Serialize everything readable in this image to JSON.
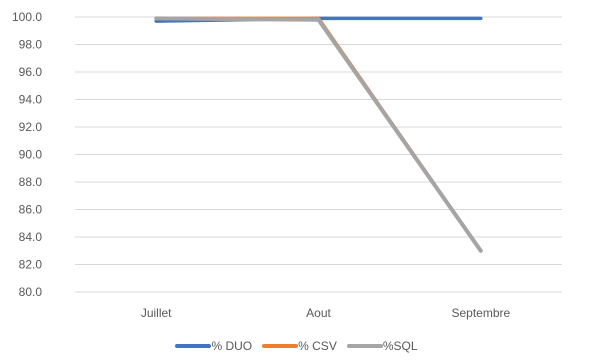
{
  "chart_data": {
    "type": "line",
    "categories": [
      "Juillet",
      "Aout",
      "Septembre"
    ],
    "series": [
      {
        "name": "% DUO",
        "color": "#4472C4",
        "values": [
          99.7,
          99.9,
          99.9
        ]
      },
      {
        "name": "% CSV",
        "color": "#ED7D31",
        "values": [
          99.9,
          99.9,
          83.0
        ]
      },
      {
        "name": "%SQL",
        "color": "#A5A5A5",
        "values": [
          99.9,
          99.8,
          83.0
        ]
      }
    ],
    "ylim": [
      80,
      100
    ],
    "ytick_step": 2,
    "yticks": [
      "80.0",
      "82.0",
      "84.0",
      "86.0",
      "88.0",
      "90.0",
      "92.0",
      "94.0",
      "96.0",
      "98.0",
      "100.0"
    ],
    "grid": true,
    "legend_position": "bottom"
  }
}
